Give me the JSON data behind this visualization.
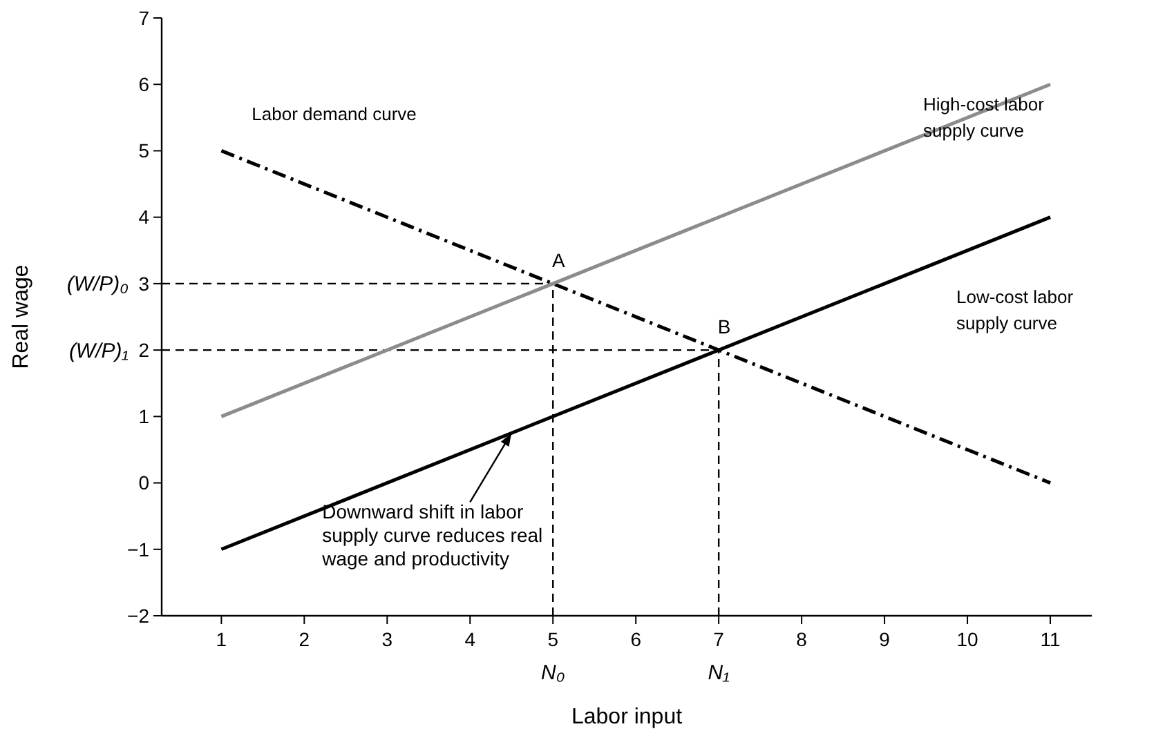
{
  "chart_data": {
    "type": "line",
    "xlabel": "Labor input",
    "ylabel": "Real wage",
    "xlim": [
      0.28,
      11.5
    ],
    "xticks": [
      1,
      2,
      3,
      4,
      5,
      6,
      7,
      8,
      9,
      10,
      11
    ],
    "ylim": [
      -2,
      7
    ],
    "yticks": [
      {
        "value": -2,
        "label": "−2"
      },
      {
        "value": -1,
        "label": "−1"
      },
      0,
      1,
      2,
      3,
      4,
      5,
      6,
      7
    ],
    "grid": false,
    "marker": "none",
    "x": [
      1,
      11
    ],
    "series": [
      {
        "name": "Labor demand curve",
        "color": "#000000",
        "values": [
          5,
          0
        ],
        "line_style": "dashdot"
      },
      {
        "name": "High-cost labor\nsupply curve",
        "color": "#8c8c8c",
        "values": [
          1,
          6
        ],
        "line_style": "solid"
      },
      {
        "name": "Low-cost labor\nsupply curve",
        "color": "#000000",
        "values": [
          -1,
          4
        ],
        "line_style": "solid"
      }
    ],
    "ref_lines": [
      {
        "axis": "y",
        "value": 3,
        "label": "(W/P)₀",
        "line_style": "dashed",
        "color": "#000000"
      },
      {
        "axis": "y",
        "value": 2,
        "label": "(W/P)₁",
        "line_style": "dashed",
        "color": "#000000"
      },
      {
        "axis": "x",
        "value": 5,
        "label": "N₀",
        "line_style": "dashed",
        "color": "#000000"
      },
      {
        "axis": "x",
        "value": 7,
        "label": "N₁",
        "line_style": "dashed",
        "color": "#000000"
      }
    ],
    "annotations": [
      {
        "text": "A",
        "x": 5,
        "y": 3
      },
      {
        "text": "B",
        "x": 7,
        "y": 2
      },
      {
        "text": "Downward shift in labor\nsupply curve reduces real\nwage and productivity",
        "x": 4.5,
        "y": 0.75
      }
    ]
  }
}
